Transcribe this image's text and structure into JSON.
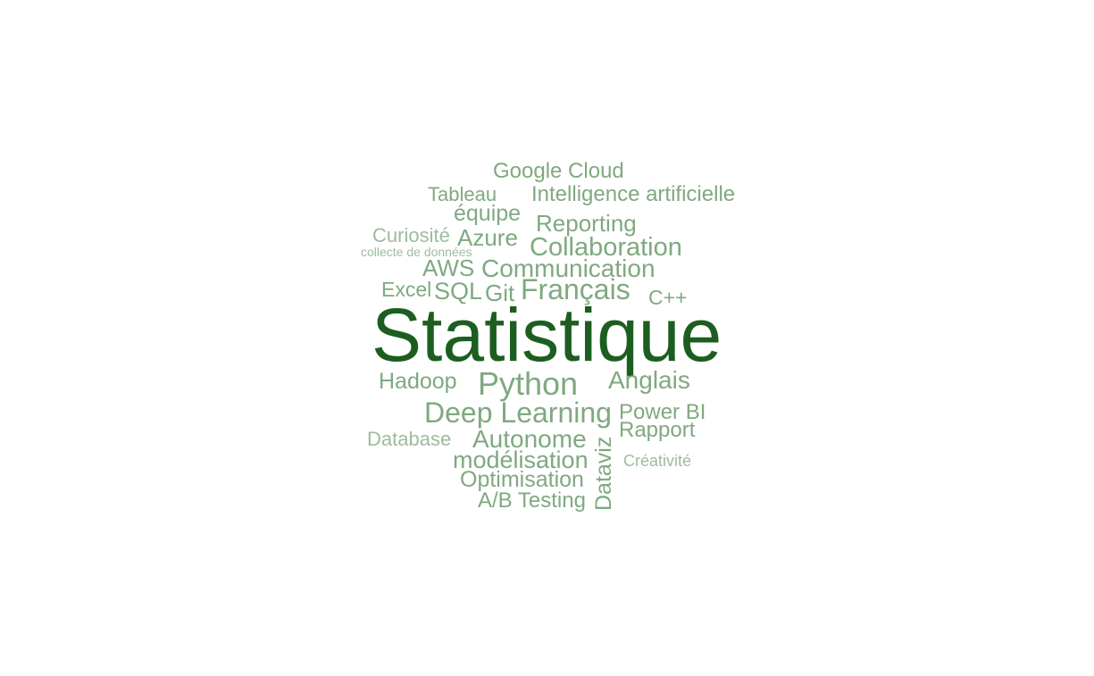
{
  "word_cloud": {
    "colors": {
      "primary": "#1d5e20",
      "secondary": "#7fa980",
      "tertiary": "#9dbc9d"
    },
    "words": [
      {
        "text": "Statistique",
        "tone": "primary"
      },
      {
        "text": "Google Cloud",
        "tone": "secondary"
      },
      {
        "text": "Tableau",
        "tone": "secondary"
      },
      {
        "text": "Intelligence artificielle",
        "tone": "secondary"
      },
      {
        "text": "équipe",
        "tone": "secondary"
      },
      {
        "text": "Reporting",
        "tone": "secondary"
      },
      {
        "text": "Curiosité",
        "tone": "tertiary"
      },
      {
        "text": "Azure",
        "tone": "secondary"
      },
      {
        "text": "Collaboration",
        "tone": "secondary"
      },
      {
        "text": "collecte de données",
        "tone": "tertiary"
      },
      {
        "text": "AWS",
        "tone": "secondary"
      },
      {
        "text": "Communication",
        "tone": "secondary"
      },
      {
        "text": "Excel",
        "tone": "secondary"
      },
      {
        "text": "SQL",
        "tone": "secondary"
      },
      {
        "text": "Git",
        "tone": "secondary"
      },
      {
        "text": "Français",
        "tone": "secondary"
      },
      {
        "text": "C++",
        "tone": "secondary"
      },
      {
        "text": "Hadoop",
        "tone": "secondary"
      },
      {
        "text": "Python",
        "tone": "secondary"
      },
      {
        "text": "Anglais",
        "tone": "secondary"
      },
      {
        "text": "Deep Learning",
        "tone": "secondary"
      },
      {
        "text": "Power BI",
        "tone": "secondary"
      },
      {
        "text": "Database",
        "tone": "tertiary"
      },
      {
        "text": "Autonome",
        "tone": "secondary"
      },
      {
        "text": "Rapport",
        "tone": "secondary"
      },
      {
        "text": "Dataviz",
        "tone": "secondary"
      },
      {
        "text": "modélisation",
        "tone": "secondary"
      },
      {
        "text": "Créativité",
        "tone": "tertiary"
      },
      {
        "text": "Optimisation",
        "tone": "secondary"
      },
      {
        "text": "A/B Testing",
        "tone": "secondary"
      }
    ]
  }
}
